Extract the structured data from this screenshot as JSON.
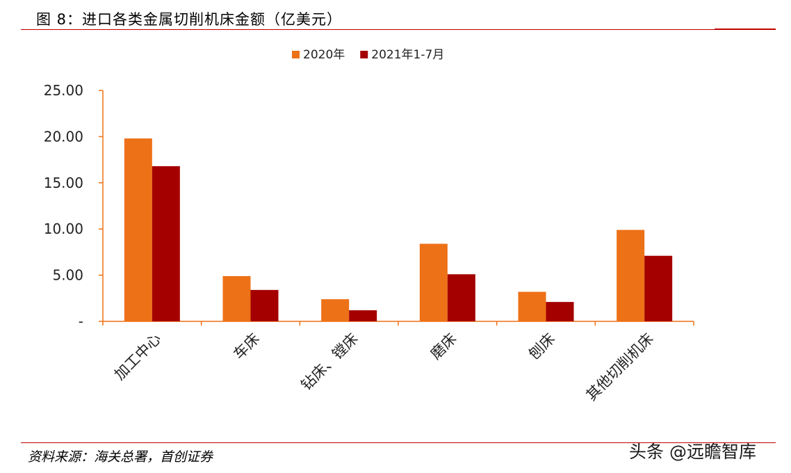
{
  "figure": {
    "title": "图 8：进口各类金属切削机床金额（亿美元）",
    "source": "资料来源：海关总署，首创证券",
    "watermark": "头条 @远瞻智库"
  },
  "chart_data": {
    "type": "bar",
    "title": "",
    "xlabel": "",
    "ylabel": "",
    "categories": [
      "加工中心",
      "车床",
      "钻床、镗床",
      "磨床",
      "刨床",
      "其他切削机床"
    ],
    "series": [
      {
        "name": "2020年",
        "color": "#ed7117",
        "values": [
          19.8,
          4.9,
          2.4,
          8.4,
          3.2,
          9.9
        ]
      },
      {
        "name": "2021年1-7月",
        "color": "#a50000",
        "values": [
          16.8,
          3.4,
          1.2,
          5.1,
          2.1,
          7.1
        ]
      }
    ],
    "ylim": [
      0,
      25
    ],
    "yticks": [
      0,
      5,
      10,
      15,
      20,
      25
    ],
    "ytick_labels": [
      "-",
      "5.00",
      "10.00",
      "15.00",
      "20.00",
      "25.00"
    ],
    "grid": false,
    "legend_position": "top-center",
    "axis_color": "#ed7117"
  }
}
